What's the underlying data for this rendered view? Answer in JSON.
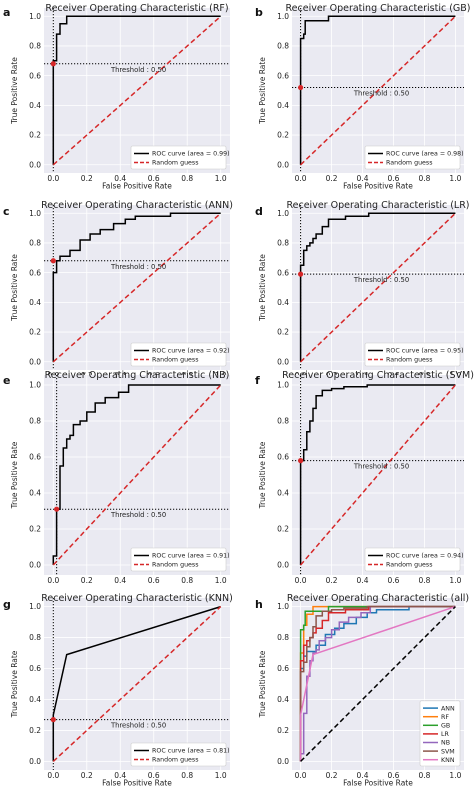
{
  "chart_data": [
    {
      "panel": "a",
      "type": "line",
      "title": "Receiver Operating Characteristic (RF)",
      "xlabel": "False Positive Rate",
      "ylabel": "True Positive Rate",
      "xlim": [
        0,
        1
      ],
      "ylim": [
        0,
        1
      ],
      "xticks": [
        "0.0",
        "0.2",
        "0.4",
        "0.6",
        "0.8",
        "1.0"
      ],
      "yticks": [
        "0.0",
        "0.2",
        "0.4",
        "0.6",
        "0.8",
        "1.0"
      ],
      "grid": true,
      "legend_position": "lower-right",
      "threshold": {
        "label": "Threshold : 0.50",
        "fpr": 0.0,
        "tpr": 0.68
      },
      "series": [
        {
          "name": "ROC curve (area = 0.99)",
          "color": "#000000",
          "style": "solid",
          "x": [
            0,
            0,
            0.02,
            0.02,
            0.04,
            0.04,
            0.08,
            0.08,
            1.0
          ],
          "y": [
            0,
            0.7,
            0.7,
            0.88,
            0.88,
            0.95,
            0.95,
            1.0,
            1.0
          ]
        },
        {
          "name": "Random guess",
          "color": "#d62728",
          "style": "dashed",
          "x": [
            0,
            1
          ],
          "y": [
            0,
            1
          ]
        }
      ]
    },
    {
      "panel": "b",
      "type": "line",
      "title": "Receiver Operating Characteristic (GB)",
      "xlabel": "False Positive Rate",
      "ylabel": "True Positive Rate",
      "xlim": [
        0,
        1
      ],
      "ylim": [
        0,
        1
      ],
      "xticks": [
        "0.0",
        "0.2",
        "0.4",
        "0.6",
        "0.8",
        "1.0"
      ],
      "yticks": [
        "0.0",
        "0.2",
        "0.4",
        "0.6",
        "0.8",
        "1.0"
      ],
      "grid": true,
      "legend_position": "lower-right",
      "threshold": {
        "label": "Threshold : 0.50",
        "fpr": 0.0,
        "tpr": 0.52
      },
      "series": [
        {
          "name": "ROC curve (area = 0.98)",
          "color": "#000000",
          "style": "solid",
          "x": [
            0,
            0,
            0.02,
            0.02,
            0.03,
            0.03,
            0.18,
            0.18,
            1.0
          ],
          "y": [
            0,
            0.85,
            0.85,
            0.88,
            0.88,
            0.97,
            0.97,
            1.0,
            1.0
          ]
        },
        {
          "name": "Random guess",
          "color": "#d62728",
          "style": "dashed",
          "x": [
            0,
            1
          ],
          "y": [
            0,
            1
          ]
        }
      ]
    },
    {
      "panel": "c",
      "type": "line",
      "title": "Receiver Operating Characteristic (ANN)",
      "xlabel": "False Positive Rate",
      "ylabel": "True Positive Rate",
      "xlim": [
        0,
        1
      ],
      "ylim": [
        0,
        1
      ],
      "xticks": [
        "0.0",
        "0.2",
        "0.4",
        "0.6",
        "0.8",
        "1.0"
      ],
      "yticks": [
        "0.0",
        "0.2",
        "0.4",
        "0.6",
        "0.8",
        "1.0"
      ],
      "grid": true,
      "legend_position": "lower-right",
      "threshold": {
        "label": "Threshold : 0.50",
        "fpr": 0.0,
        "tpr": 0.68
      },
      "series": [
        {
          "name": "ROC curve (area = 0.92)",
          "color": "#000000",
          "style": "solid",
          "x": [
            0,
            0,
            0.02,
            0.02,
            0.04,
            0.04,
            0.1,
            0.1,
            0.16,
            0.16,
            0.22,
            0.22,
            0.28,
            0.28,
            0.36,
            0.36,
            0.43,
            0.43,
            0.49,
            0.49,
            0.7,
            0.7,
            1.0
          ],
          "y": [
            0,
            0.6,
            0.6,
            0.68,
            0.68,
            0.71,
            0.71,
            0.75,
            0.75,
            0.82,
            0.82,
            0.86,
            0.86,
            0.89,
            0.89,
            0.93,
            0.93,
            0.96,
            0.96,
            0.98,
            0.98,
            1.0,
            1.0
          ]
        },
        {
          "name": "Random guess",
          "color": "#d62728",
          "style": "dashed",
          "x": [
            0,
            1
          ],
          "y": [
            0,
            1
          ]
        }
      ]
    },
    {
      "panel": "d",
      "type": "line",
      "title": "Receiver Operating Characteristic (LR)",
      "xlabel": "False Positive Rate",
      "ylabel": "True Positive Rate",
      "xlim": [
        0,
        1
      ],
      "ylim": [
        0,
        1
      ],
      "xticks": [
        "0.0",
        "0.2",
        "0.4",
        "0.6",
        "0.8",
        "1.0"
      ],
      "yticks": [
        "0.0",
        "0.2",
        "0.4",
        "0.6",
        "0.8",
        "1.0"
      ],
      "grid": true,
      "legend_position": "lower-right",
      "threshold": {
        "label": "Threshold : 0.50",
        "fpr": 0.0,
        "tpr": 0.59
      },
      "series": [
        {
          "name": "ROC curve (area = 0.95)",
          "color": "#000000",
          "style": "solid",
          "x": [
            0,
            0,
            0.02,
            0.02,
            0.04,
            0.04,
            0.06,
            0.06,
            0.08,
            0.08,
            0.1,
            0.1,
            0.14,
            0.14,
            0.18,
            0.18,
            0.29,
            0.29,
            0.44,
            0.44,
            1.0
          ],
          "y": [
            0,
            0.65,
            0.65,
            0.75,
            0.75,
            0.78,
            0.78,
            0.8,
            0.8,
            0.83,
            0.83,
            0.86,
            0.86,
            0.91,
            0.91,
            0.96,
            0.96,
            0.98,
            0.98,
            1.0,
            1.0
          ]
        },
        {
          "name": "Random guess",
          "color": "#d62728",
          "style": "dashed",
          "x": [
            0,
            1
          ],
          "y": [
            0,
            1
          ]
        }
      ]
    },
    {
      "panel": "e",
      "type": "line",
      "title": "Receiver Operating Characteristic (NB)",
      "xlabel": "",
      "ylabel": "True Positive Rate",
      "xlim": [
        0,
        1
      ],
      "ylim": [
        0,
        1
      ],
      "xticks": [
        "0.0",
        "0.2",
        "0.4",
        "0.6",
        "0.8",
        "1.0"
      ],
      "yticks": [
        "0.0",
        "0.2",
        "0.4",
        "0.6",
        "0.8",
        "1.0"
      ],
      "grid": true,
      "legend_position": "lower-right",
      "threshold": {
        "label": "Threshold : 0.50",
        "fpr": 0.02,
        "tpr": 0.31
      },
      "series": [
        {
          "name": "ROC curve (area = 0.91)",
          "color": "#000000",
          "style": "solid",
          "x": [
            0,
            0,
            0.02,
            0.02,
            0.04,
            0.04,
            0.06,
            0.06,
            0.08,
            0.08,
            0.1,
            0.1,
            0.12,
            0.12,
            0.16,
            0.16,
            0.2,
            0.2,
            0.25,
            0.25,
            0.31,
            0.31,
            0.39,
            0.39,
            0.45,
            0.45,
            1.0
          ],
          "y": [
            0,
            0.05,
            0.05,
            0.31,
            0.31,
            0.55,
            0.55,
            0.65,
            0.65,
            0.7,
            0.7,
            0.72,
            0.72,
            0.78,
            0.78,
            0.8,
            0.8,
            0.85,
            0.85,
            0.9,
            0.9,
            0.93,
            0.93,
            0.96,
            0.96,
            1.0,
            1.0
          ]
        },
        {
          "name": "Random guess",
          "color": "#d62728",
          "style": "dashed",
          "x": [
            0,
            1
          ],
          "y": [
            0,
            1
          ]
        }
      ]
    },
    {
      "panel": "f",
      "type": "line",
      "title": "Receiver Operating Characteristic (SVM)",
      "xlabel": "",
      "ylabel": "True Positive Rate",
      "xlim": [
        0,
        1
      ],
      "ylim": [
        0,
        1
      ],
      "xticks": [
        "0.0",
        "0.2",
        "0.4",
        "0.6",
        "0.8",
        "1.0"
      ],
      "yticks": [
        "0.0",
        "0.2",
        "0.4",
        "0.6",
        "0.8",
        "1.0"
      ],
      "grid": true,
      "legend_position": "lower-right",
      "threshold": {
        "label": "Threshold : 0.50",
        "fpr": 0.0,
        "tpr": 0.58
      },
      "series": [
        {
          "name": "ROC curve (area = 0.94)",
          "color": "#000000",
          "style": "solid",
          "x": [
            0,
            0,
            0.02,
            0.02,
            0.04,
            0.04,
            0.06,
            0.06,
            0.08,
            0.08,
            0.1,
            0.1,
            0.14,
            0.14,
            0.2,
            0.2,
            0.28,
            0.28,
            0.43,
            0.43,
            1.0
          ],
          "y": [
            0,
            0.58,
            0.58,
            0.64,
            0.64,
            0.74,
            0.74,
            0.8,
            0.8,
            0.87,
            0.87,
            0.94,
            0.94,
            0.97,
            0.97,
            0.98,
            0.98,
            0.99,
            0.99,
            1.0,
            1.0
          ]
        },
        {
          "name": "Random guess",
          "color": "#d62728",
          "style": "dashed",
          "x": [
            0,
            1
          ],
          "y": [
            0,
            1
          ]
        }
      ]
    },
    {
      "panel": "g",
      "type": "line",
      "title": "Receiver Operating Characteristic (KNN)",
      "xlabel": "False Positive Rate",
      "ylabel": "True Positive Rate",
      "xlim": [
        0,
        1
      ],
      "ylim": [
        0,
        1
      ],
      "xticks": [
        "0.0",
        "0.2",
        "0.4",
        "0.6",
        "0.8",
        "1.0"
      ],
      "yticks": [
        "0.0",
        "0.2",
        "0.4",
        "0.6",
        "0.8",
        "1.0"
      ],
      "grid": true,
      "legend_position": "lower-right",
      "threshold": {
        "label": "Threshold : 0.50",
        "fpr": 0.0,
        "tpr": 0.27
      },
      "series": [
        {
          "name": "ROC curve (area = 0.81)",
          "color": "#000000",
          "style": "solid",
          "x": [
            0,
            0,
            0.08,
            1.0
          ],
          "y": [
            0,
            0.3,
            0.69,
            1.0
          ]
        },
        {
          "name": "Random guess",
          "color": "#d62728",
          "style": "dashed",
          "x": [
            0,
            1
          ],
          "y": [
            0,
            1
          ]
        }
      ]
    },
    {
      "panel": "h",
      "type": "line",
      "title": "Receiver Operating Characteristic (all)",
      "xlabel": "False Positive Rate",
      "ylabel": "True Positive Rate",
      "xlim": [
        0,
        1
      ],
      "ylim": [
        0,
        1
      ],
      "xticks": [
        "0.0",
        "0.2",
        "0.4",
        "0.6",
        "0.8",
        "1.0"
      ],
      "yticks": [
        "0.0",
        "0.2",
        "0.4",
        "0.6",
        "0.8",
        "1.0"
      ],
      "grid": true,
      "legend_position": "lower-right",
      "series": [
        {
          "name": "ANN",
          "color": "#1f77b4",
          "style": "solid",
          "x": [
            0,
            0,
            0.02,
            0.02,
            0.04,
            0.04,
            0.1,
            0.1,
            0.16,
            0.16,
            0.22,
            0.22,
            0.28,
            0.28,
            0.36,
            0.36,
            0.43,
            0.43,
            0.49,
            0.49,
            0.7,
            0.7,
            1.0
          ],
          "y": [
            0,
            0.6,
            0.6,
            0.68,
            0.68,
            0.71,
            0.71,
            0.75,
            0.75,
            0.82,
            0.82,
            0.86,
            0.86,
            0.89,
            0.89,
            0.93,
            0.93,
            0.96,
            0.96,
            0.98,
            0.98,
            1.0,
            1.0
          ]
        },
        {
          "name": "RF",
          "color": "#ff7f0e",
          "style": "solid",
          "x": [
            0,
            0,
            0.02,
            0.02,
            0.04,
            0.04,
            0.08,
            0.08,
            1.0
          ],
          "y": [
            0,
            0.7,
            0.7,
            0.88,
            0.88,
            0.95,
            0.95,
            1.0,
            1.0
          ]
        },
        {
          "name": "GB",
          "color": "#2ca02c",
          "style": "solid",
          "x": [
            0,
            0,
            0.02,
            0.02,
            0.03,
            0.03,
            0.18,
            0.18,
            1.0
          ],
          "y": [
            0,
            0.85,
            0.85,
            0.88,
            0.88,
            0.97,
            0.97,
            1.0,
            1.0
          ]
        },
        {
          "name": "LR",
          "color": "#d62728",
          "style": "solid",
          "x": [
            0,
            0,
            0.02,
            0.02,
            0.04,
            0.04,
            0.06,
            0.06,
            0.08,
            0.08,
            0.1,
            0.1,
            0.14,
            0.14,
            0.18,
            0.18,
            0.29,
            0.29,
            0.44,
            0.44,
            1.0
          ],
          "y": [
            0,
            0.65,
            0.65,
            0.75,
            0.75,
            0.78,
            0.78,
            0.8,
            0.8,
            0.83,
            0.83,
            0.86,
            0.86,
            0.91,
            0.91,
            0.96,
            0.96,
            0.98,
            0.98,
            1.0,
            1.0
          ]
        },
        {
          "name": "NB",
          "color": "#9467bd",
          "style": "solid",
          "x": [
            0,
            0,
            0.02,
            0.02,
            0.04,
            0.04,
            0.06,
            0.06,
            0.08,
            0.08,
            0.1,
            0.1,
            0.12,
            0.12,
            0.16,
            0.16,
            0.2,
            0.2,
            0.25,
            0.25,
            0.31,
            0.31,
            0.39,
            0.39,
            0.45,
            0.45,
            1.0
          ],
          "y": [
            0,
            0.05,
            0.05,
            0.31,
            0.31,
            0.55,
            0.55,
            0.65,
            0.65,
            0.7,
            0.7,
            0.72,
            0.72,
            0.78,
            0.78,
            0.8,
            0.8,
            0.85,
            0.85,
            0.9,
            0.9,
            0.93,
            0.93,
            0.96,
            0.96,
            1.0,
            1.0
          ]
        },
        {
          "name": "SVM",
          "color": "#8c564b",
          "style": "solid",
          "x": [
            0,
            0,
            0.02,
            0.02,
            0.04,
            0.04,
            0.06,
            0.06,
            0.08,
            0.08,
            0.1,
            0.1,
            0.14,
            0.14,
            0.2,
            0.2,
            0.28,
            0.28,
            0.43,
            0.43,
            1.0
          ],
          "y": [
            0,
            0.58,
            0.58,
            0.64,
            0.64,
            0.74,
            0.74,
            0.8,
            0.8,
            0.87,
            0.87,
            0.94,
            0.94,
            0.97,
            0.97,
            0.98,
            0.98,
            0.99,
            0.99,
            1.0,
            1.0
          ]
        },
        {
          "name": "KNN",
          "color": "#e377c2",
          "style": "solid",
          "x": [
            0,
            0,
            0.08,
            1.0
          ],
          "y": [
            0,
            0.3,
            0.69,
            1.0
          ]
        },
        {
          "name": "",
          "color": "#000000",
          "style": "dashed",
          "x": [
            0,
            1
          ],
          "y": [
            0,
            1
          ]
        }
      ]
    }
  ]
}
